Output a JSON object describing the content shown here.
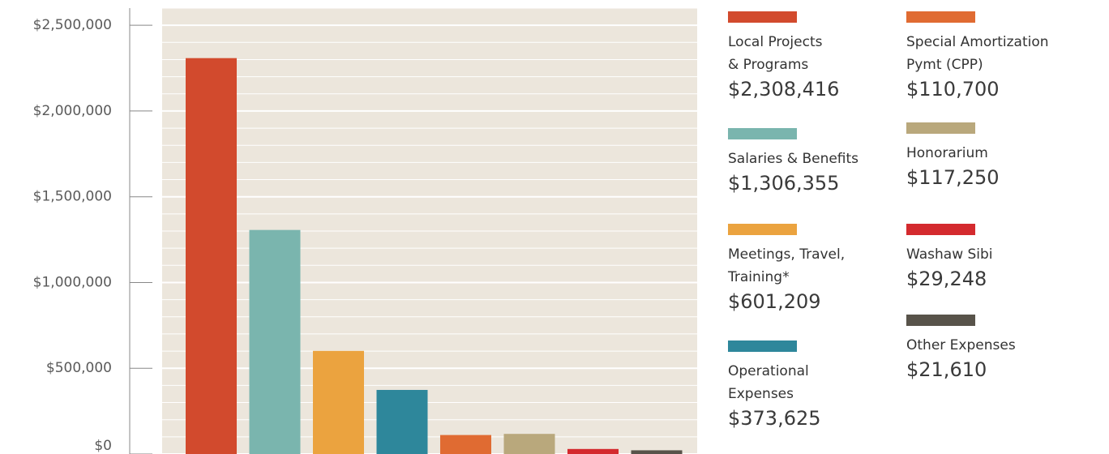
{
  "chart_data": {
    "type": "bar",
    "categories": [
      "Local Projects\n& Programs",
      "Salaries & Benefits",
      "Meetings, Travel,\nTraining*",
      "Operational\nExpenses",
      "Special Amortization\nPymt (CPP)",
      "Honorarium",
      "Washaw Sibi",
      "Other Expenses"
    ],
    "values": [
      2308416,
      1306355,
      601209,
      373625,
      110700,
      117250,
      29248,
      21610
    ],
    "value_labels": [
      "$2,308,416",
      "$1,306,355",
      "$601,209",
      "$373,625",
      "$110,700",
      "$117,250",
      "$29,248",
      "$21,610"
    ],
    "colors": [
      "#d24a2d",
      "#7ab5ae",
      "#eba33f",
      "#2e879b",
      "#e06b32",
      "#b9a87c",
      "#d42a2e",
      "#58534a"
    ],
    "ylim": [
      0,
      2600000
    ],
    "yticks": [
      {
        "value": 0,
        "label": "$0"
      },
      {
        "value": 500000,
        "label": "$500,000"
      },
      {
        "value": 1000000,
        "label": "$1,000,000"
      },
      {
        "value": 1500000,
        "label": "$1,500,000"
      },
      {
        "value": 2000000,
        "label": "$2,000,000"
      },
      {
        "value": 2500000,
        "label": "$2,500,000"
      }
    ],
    "grid": true
  }
}
